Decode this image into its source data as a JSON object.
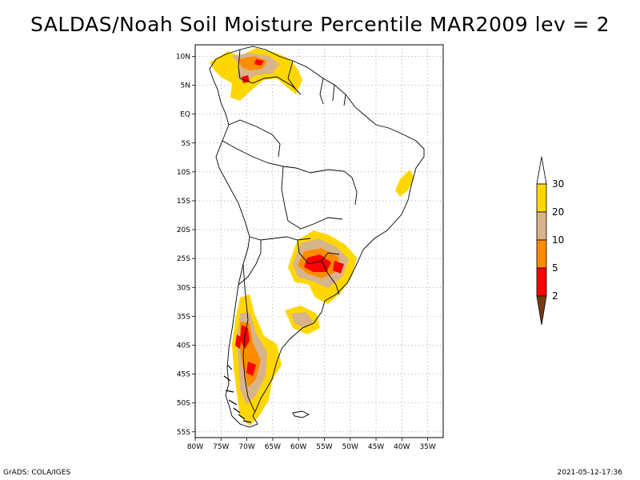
{
  "title": "SALDAS/Noah Soil Moisture Percentile MAR2009 lev = 2",
  "footer": {
    "left": "GrADS: COLA/IGES",
    "right": "2021-05-12-17:36"
  },
  "map": {
    "lon_range": [
      -80,
      -32
    ],
    "lat_range": [
      -56,
      12
    ],
    "lon_ticks": [
      {
        "lon": -80,
        "label": "80W"
      },
      {
        "lon": -75,
        "label": "75W"
      },
      {
        "lon": -70,
        "label": "70W"
      },
      {
        "lon": -65,
        "label": "65W"
      },
      {
        "lon": -60,
        "label": "60W"
      },
      {
        "lon": -55,
        "label": "55W"
      },
      {
        "lon": -50,
        "label": "50W"
      },
      {
        "lon": -45,
        "label": "45W"
      },
      {
        "lon": -40,
        "label": "40W"
      },
      {
        "lon": -35,
        "label": "35W"
      }
    ],
    "lat_ticks": [
      {
        "lat": 10,
        "label": "10N"
      },
      {
        "lat": 5,
        "label": "5N"
      },
      {
        "lat": 0,
        "label": "EQ"
      },
      {
        "lat": -5,
        "label": "5S"
      },
      {
        "lat": -10,
        "label": "10S"
      },
      {
        "lat": -15,
        "label": "15S"
      },
      {
        "lat": -20,
        "label": "20S"
      },
      {
        "lat": -25,
        "label": "25S"
      },
      {
        "lat": -30,
        "label": "30S"
      },
      {
        "lat": -35,
        "label": "35S"
      },
      {
        "lat": -40,
        "label": "40S"
      },
      {
        "lat": -45,
        "label": "45S"
      },
      {
        "lat": -50,
        "label": "50S"
      },
      {
        "lat": -55,
        "label": "55S"
      }
    ],
    "colors": {
      "c2": "#7a3a10",
      "c5": "#ff0000",
      "c10": "#ff8c00",
      "c20": "#d8b48a",
      "c30": "#ffd700",
      "c_top": "#ffffff"
    }
  },
  "colorbar": {
    "labels": [
      {
        "value": "30"
      },
      {
        "value": "20"
      },
      {
        "value": "10"
      },
      {
        "value": "5"
      },
      {
        "value": "2"
      }
    ]
  }
}
